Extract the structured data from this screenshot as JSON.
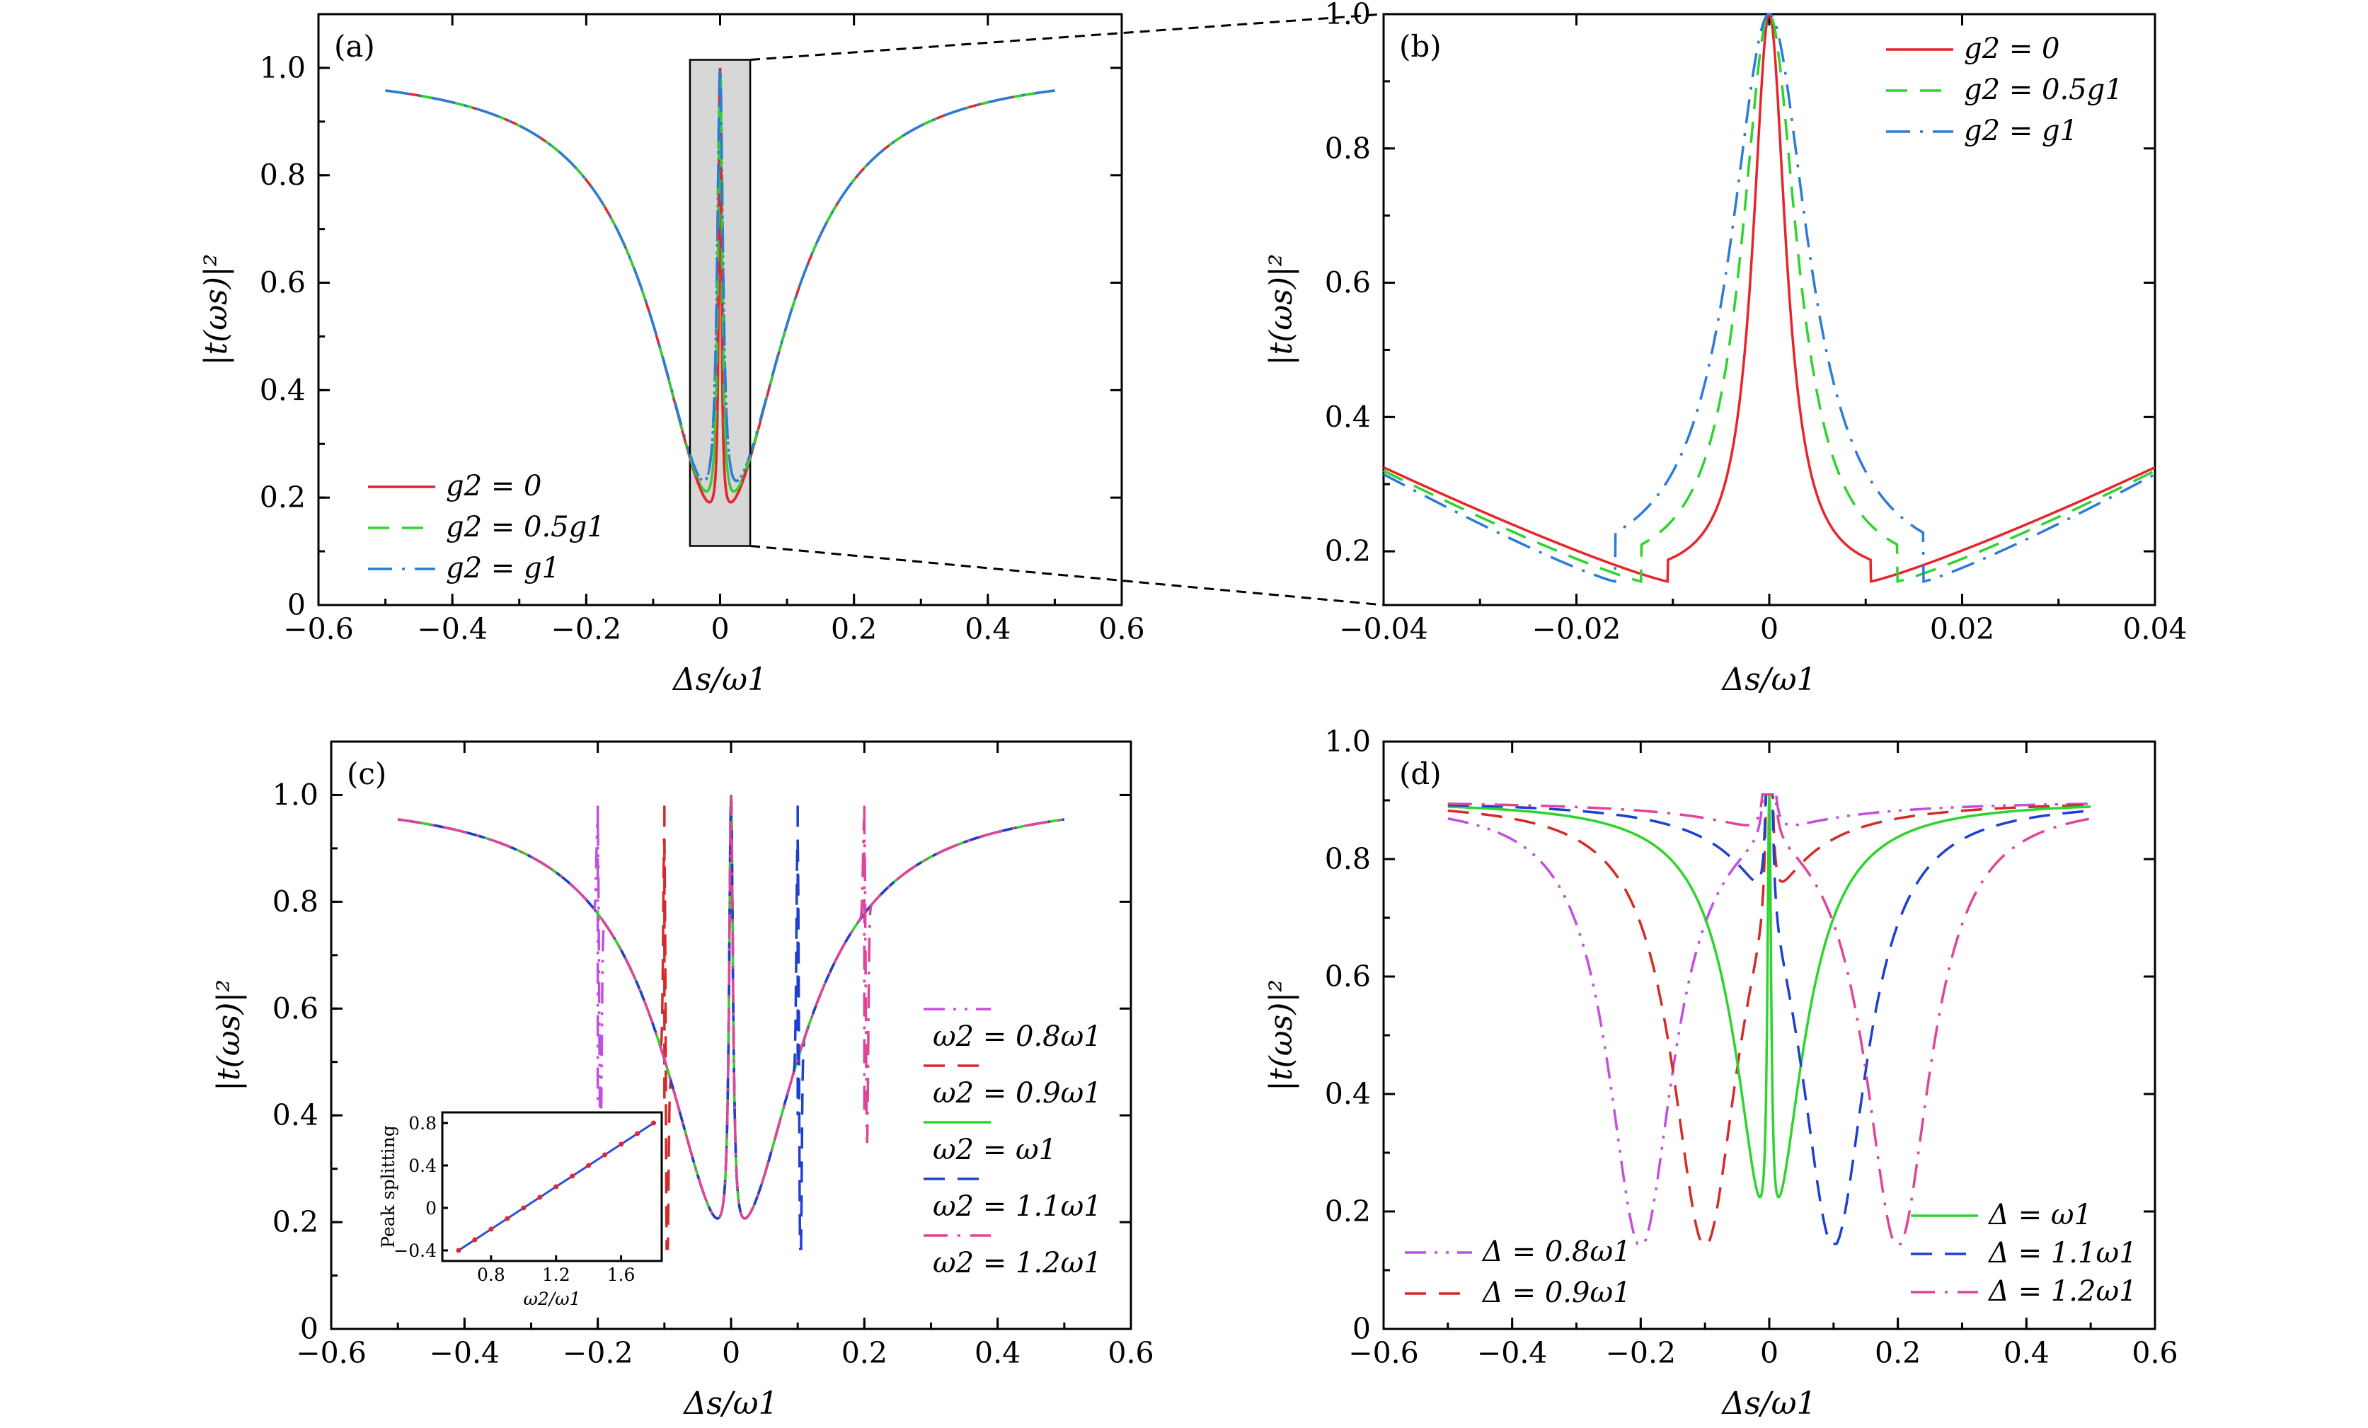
{
  "chart_data": [
    {
      "id": "a",
      "panel_label": "(a)",
      "type": "line",
      "xlabel": "Δs/ω1",
      "ylabel": "|t(ωs)|²",
      "xlim": [
        -0.6,
        0.6
      ],
      "ylim": [
        0,
        1.1
      ],
      "xticks": [
        -0.6,
        -0.4,
        -0.2,
        0,
        0.2,
        0.4,
        0.6
      ],
      "xtick_labels": [
        "−0.6",
        "−0.4",
        "−0.2",
        "0",
        "0.2",
        "0.4",
        "0.6"
      ],
      "yticks": [
        0,
        0.2,
        0.4,
        0.6,
        0.8,
        1.0
      ],
      "ytick_labels": [
        "0",
        "0.2",
        "0.4",
        "0.6",
        "0.8",
        "1.0"
      ],
      "legend_position": "bottom-left",
      "zoom_box": {
        "x": [
          -0.045,
          0.045
        ],
        "y": [
          0.11,
          1.015
        ]
      },
      "series": [
        {
          "name": "g2 = 0",
          "color": "#e8242b",
          "dash": "solid",
          "g2": 0
        },
        {
          "name": "g2 = 0.5g1",
          "color": "#2ed32e",
          "dash": "dash",
          "g2": 0.5
        },
        {
          "name": "g2 = g1",
          "color": "#2b7bd8",
          "dash": "dashdot",
          "g2": 1
        }
      ]
    },
    {
      "id": "b",
      "panel_label": "(b)",
      "type": "line",
      "xlabel": "Δs/ω1",
      "ylabel": "|t(ωs)|²",
      "xlim": [
        -0.04,
        0.04
      ],
      "ylim": [
        0.12,
        1.0
      ],
      "xticks": [
        -0.04,
        -0.02,
        0,
        0.02,
        0.04
      ],
      "xtick_labels": [
        "−0.04",
        "−0.02",
        "0",
        "0.02",
        "0.04"
      ],
      "yticks": [
        0.2,
        0.4,
        0.6,
        0.8,
        1.0
      ],
      "ytick_labels": [
        "0.2",
        "0.4",
        "0.6",
        "0.8",
        "1.0"
      ],
      "legend_position": "top-right",
      "series": [
        {
          "name": "g2 = 0",
          "color": "#e8242b",
          "dash": "solid",
          "g2": 0
        },
        {
          "name": "g2 = 0.5g1",
          "color": "#2ed32e",
          "dash": "dash",
          "g2": 0.5
        },
        {
          "name": "g2 = g1",
          "color": "#2b7bd8",
          "dash": "dashdot",
          "g2": 1
        }
      ]
    },
    {
      "id": "c",
      "panel_label": "(c)",
      "type": "line",
      "xlabel": "Δs/ω1",
      "ylabel": "|t(ωs)|²",
      "xlim": [
        -0.6,
        0.6
      ],
      "ylim": [
        0,
        1.1
      ],
      "xticks": [
        -0.6,
        -0.4,
        -0.2,
        0,
        0.2,
        0.4,
        0.6
      ],
      "xtick_labels": [
        "−0.6",
        "−0.4",
        "−0.2",
        "0",
        "0.2",
        "0.4",
        "0.6"
      ],
      "yticks": [
        0,
        0.2,
        0.4,
        0.6,
        0.8,
        1.0
      ],
      "ytick_labels": [
        "0",
        "0.2",
        "0.4",
        "0.6",
        "0.8",
        "1.0"
      ],
      "legend_position": "right",
      "series": [
        {
          "name": "ω2 = 0.8ω1",
          "color": "#c44ee0",
          "dash": "dashdotdot",
          "feature": -0.2
        },
        {
          "name": "ω2 = 0.9ω1",
          "color": "#d42a2a",
          "dash": "dash",
          "feature": -0.1
        },
        {
          "name": "ω2 = ω1",
          "color": "#2ed32e",
          "dash": "solid",
          "feature": 0
        },
        {
          "name": "ω2 = 1.1ω1",
          "color": "#1f3fd0",
          "dash": "dash",
          "feature": 0.1
        },
        {
          "name": "ω2 = 1.2ω1",
          "color": "#e0449a",
          "dash": "dashdot",
          "feature": 0.2
        }
      ],
      "inset": {
        "xlabel": "ω2/ω1",
        "ylabel": "Peak splitting",
        "xlim": [
          0.5,
          1.85
        ],
        "ylim": [
          -0.5,
          0.9
        ],
        "xticks": [
          0.8,
          1.2,
          1.6
        ],
        "xtick_labels": [
          "0.8",
          "1.2",
          "1.6"
        ],
        "yticks": [
          -0.4,
          0,
          0.4,
          0.8
        ],
        "ytick_labels": [
          "−0.4",
          "0",
          "0.4",
          "0.8"
        ],
        "x": [
          0.6,
          0.7,
          0.8,
          0.9,
          1.0,
          1.1,
          1.2,
          1.3,
          1.4,
          1.5,
          1.6,
          1.7,
          1.8
        ],
        "y": [
          -0.4,
          -0.3,
          -0.2,
          -0.1,
          0.0,
          0.1,
          0.2,
          0.3,
          0.4,
          0.5,
          0.6,
          0.7,
          0.8
        ],
        "line_color": "#2b4fd8",
        "marker_color": "#e8242b"
      }
    },
    {
      "id": "d",
      "panel_label": "(d)",
      "type": "line",
      "xlabel": "Δs/ω1",
      "ylabel": "|t(ωs)|²",
      "xlim": [
        -0.6,
        0.6
      ],
      "ylim": [
        0,
        1.0
      ],
      "xticks": [
        -0.6,
        -0.4,
        -0.2,
        0,
        0.2,
        0.4,
        0.6
      ],
      "xtick_labels": [
        "−0.6",
        "−0.4",
        "−0.2",
        "0",
        "0.2",
        "0.4",
        "0.6"
      ],
      "yticks": [
        0,
        0.2,
        0.4,
        0.6,
        0.8,
        1.0
      ],
      "ytick_labels": [
        "0",
        "0.2",
        "0.4",
        "0.6",
        "0.8",
        "1.0"
      ],
      "legend_position": "bottom",
      "series": [
        {
          "name": "Δ = 0.8ω1",
          "color": "#c44ee0",
          "dash": "dashdotdot",
          "center": -0.2
        },
        {
          "name": "Δ = 0.9ω1",
          "color": "#d42a2a",
          "dash": "dash",
          "center": -0.1
        },
        {
          "name": "Δ = ω1",
          "color": "#2ed32e",
          "dash": "solid",
          "center": 0
        },
        {
          "name": "Δ = 1.1ω1",
          "color": "#1f3fd0",
          "dash": "dash",
          "center": 0.1
        },
        {
          "name": "Δ = 1.2ω1",
          "color": "#e0449a",
          "dash": "dashdot",
          "center": 0.2
        }
      ]
    }
  ]
}
